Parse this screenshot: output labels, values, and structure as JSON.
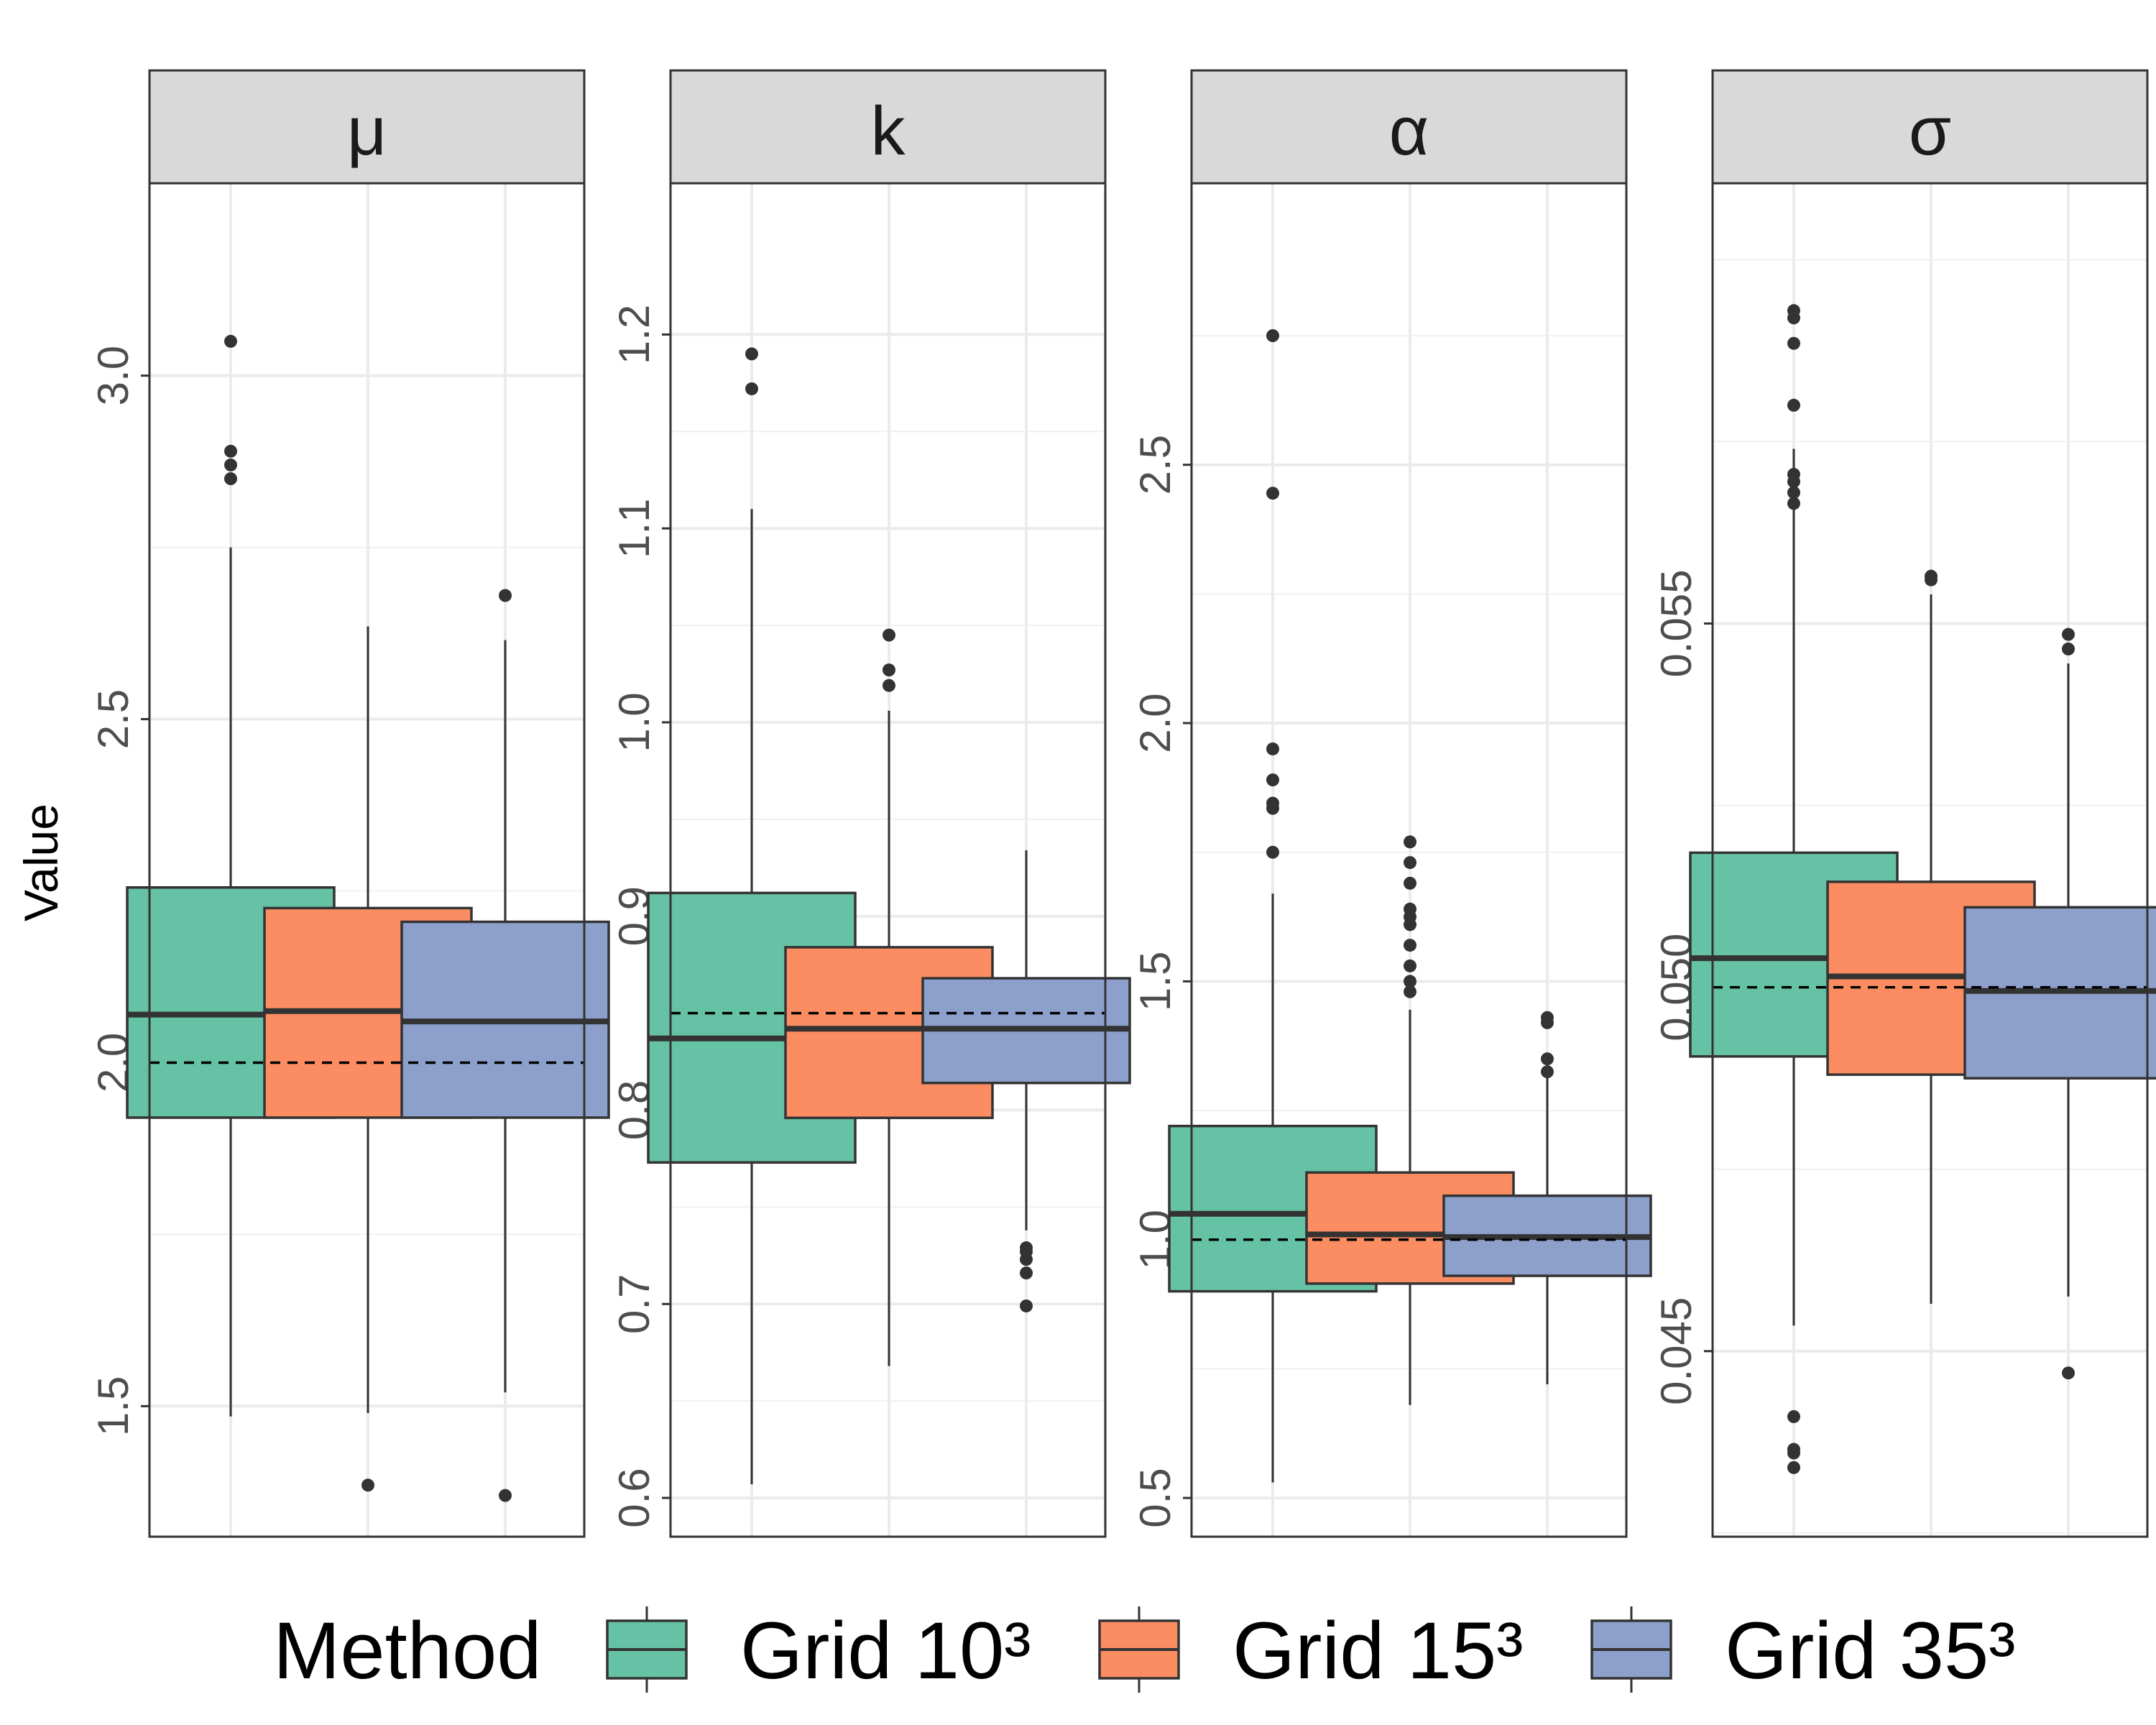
{
  "chart_data": {
    "type": "boxplot",
    "ylabel": "Value",
    "legend_title": "Method",
    "legend_position": "bottom",
    "series": [
      {
        "name": "Grid 10³",
        "color": "#66C2A5"
      },
      {
        "name": "Grid 15³",
        "color": "#FC8D62"
      },
      {
        "name": "Grid 35³",
        "color": "#8DA0CB"
      }
    ],
    "panels": [
      {
        "label": "μ",
        "ylim": [
          1.31,
          3.28
        ],
        "yticks": [
          1.5,
          2.0,
          2.5,
          3.0
        ],
        "tick_labels": [
          "1.5",
          "2.0",
          "2.5",
          "3.0"
        ],
        "minor_ticks": [
          1.75,
          2.25,
          2.75
        ],
        "reference": 2.0,
        "boxes": [
          {
            "q1": 1.92,
            "median": 2.07,
            "q3": 2.255,
            "lower": 1.485,
            "upper": 2.75,
            "outliers": [
              3.05,
              2.89,
              2.87,
              2.85
            ]
          },
          {
            "q1": 1.92,
            "median": 2.075,
            "q3": 2.225,
            "lower": 1.49,
            "upper": 2.635,
            "outliers": [
              1.385
            ]
          },
          {
            "q1": 1.92,
            "median": 2.06,
            "q3": 2.205,
            "lower": 1.52,
            "upper": 2.615,
            "outliers": [
              2.68,
              1.37
            ]
          }
        ]
      },
      {
        "label": "k",
        "ylim": [
          0.58,
          1.278
        ],
        "yticks": [
          0.6,
          0.7,
          0.8,
          0.9,
          1.0,
          1.1,
          1.2
        ],
        "tick_labels": [
          "0.6",
          "0.7",
          "0.8",
          "0.9",
          "1.0",
          "1.1",
          "1.2"
        ],
        "minor_ticks": [
          0.65,
          0.75,
          0.85,
          0.95,
          1.05,
          1.15
        ],
        "reference": 0.85,
        "boxes": [
          {
            "q1": 0.773,
            "median": 0.837,
            "q3": 0.912,
            "lower": 0.607,
            "upper": 1.11,
            "outliers": [
              1.19,
              1.172
            ]
          },
          {
            "q1": 0.796,
            "median": 0.842,
            "q3": 0.884,
            "lower": 0.668,
            "upper": 1.006,
            "outliers": [
              1.045,
              1.027,
              1.019
            ]
          },
          {
            "q1": 0.814,
            "median": 0.842,
            "q3": 0.868,
            "lower": 0.738,
            "upper": 0.934,
            "outliers": [
              0.729,
              0.727,
              0.723,
              0.716,
              0.699
            ]
          }
        ]
      },
      {
        "label": "α",
        "ylim": [
          0.425,
          3.045
        ],
        "yticks": [
          0.5,
          1.0,
          1.5,
          2.0,
          2.5
        ],
        "tick_labels": [
          "0.5",
          "1.0",
          "1.5",
          "2.0",
          "2.5"
        ],
        "minor_ticks": [
          0.75,
          1.25,
          1.75,
          2.25,
          2.75
        ],
        "reference": 1.0,
        "boxes": [
          {
            "q1": 0.9,
            "median": 1.05,
            "q3": 1.22,
            "lower": 0.53,
            "upper": 1.67,
            "outliers": [
              2.75,
              2.445,
              1.95,
              1.89,
              1.845,
              1.835,
              1.75
            ]
          },
          {
            "q1": 0.915,
            "median": 1.01,
            "q3": 1.13,
            "lower": 0.68,
            "upper": 1.445,
            "outliers": [
              1.77,
              1.73,
              1.69,
              1.64,
              1.625,
              1.61,
              1.57,
              1.53,
              1.5,
              1.48
            ]
          },
          {
            "q1": 0.93,
            "median": 1.005,
            "q3": 1.085,
            "lower": 0.72,
            "upper": 1.315,
            "outliers": [
              1.43,
              1.42,
              1.35,
              1.325
            ]
          }
        ]
      },
      {
        "label": "σ",
        "ylim": [
          0.04245,
          0.06105
        ],
        "yticks": [
          0.045,
          0.05,
          0.055
        ],
        "tick_labels": [
          "0.045",
          "0.050",
          "0.055"
        ],
        "minor_ticks": [
          0.0425,
          0.0475,
          0.0525,
          0.0575,
          0.06
        ],
        "reference": 0.05,
        "boxes": [
          {
            "q1": 0.04905,
            "median": 0.0504,
            "q3": 0.05185,
            "lower": 0.04535,
            "upper": 0.0574,
            "outliers": [
              0.0593,
              0.0592,
              0.05885,
              0.058,
              0.05705,
              0.05695,
              0.0568,
              0.05665,
              0.0441,
              0.04365,
              0.0436,
              0.0434
            ]
          },
          {
            "q1": 0.0488,
            "median": 0.05015,
            "q3": 0.05145,
            "lower": 0.04565,
            "upper": 0.0554,
            "outliers": [
              0.05565,
              0.0556
            ]
          },
          {
            "q1": 0.04875,
            "median": 0.04995,
            "q3": 0.0511,
            "lower": 0.04575,
            "upper": 0.05445,
            "outliers": [
              0.05485,
              0.05465,
              0.0447
            ]
          }
        ]
      }
    ]
  }
}
